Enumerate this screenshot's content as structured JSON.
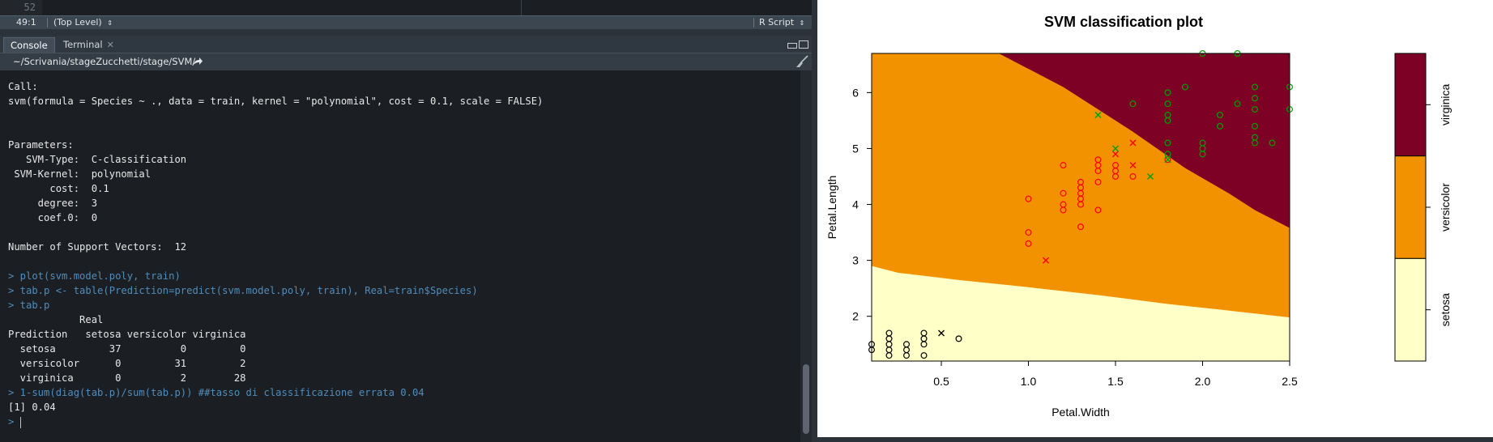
{
  "editor": {
    "line_number": "52"
  },
  "statusbar": {
    "position": "49:1",
    "scope": "(Top Level)",
    "filetype": "R Script"
  },
  "tabs": [
    {
      "label": "Console"
    },
    {
      "label": "Terminal"
    }
  ],
  "path": {
    "text": "~/Scrivania/stageZucchetti/stage/SVM/"
  },
  "console": {
    "lines": [
      "Call:",
      "svm(formula = Species ~ ., data = train, kernel = \"polynomial\", cost = 0.1, scale = FALSE)",
      "",
      "",
      "Parameters:",
      "   SVM-Type:  C-classification",
      " SVM-Kernel:  polynomial",
      "       cost:  0.1",
      "     degree:  3",
      "     coef.0:  0",
      "",
      "Number of Support Vectors:  12",
      "",
      "> plot(svm.model.poly, train)",
      "> tab.p <- table(Prediction=predict(svm.model.poly, train), Real=train$Species)",
      "> tab.p",
      "            Real",
      "Prediction   setosa versicolor virginica",
      "  setosa         37          0         0",
      "  versicolor      0         31         2",
      "  virginica       0          2        28",
      "> 1-sum(diag(tab.p)/sum(tab.p)) ##tasso di classificazione errata 0.04",
      "[1] 0.04",
      "> "
    ]
  },
  "chart_data": {
    "type": "scatter",
    "title": "SVM classification plot",
    "xlabel": "Petal.Width",
    "ylabel": "Petal.Length",
    "xlim": [
      0.1,
      2.5
    ],
    "ylim": [
      1.2,
      6.7
    ],
    "xticks": [
      "0.5",
      "1.0",
      "1.5",
      "2.0",
      "2.5"
    ],
    "xtick_values": [
      0.5,
      1.0,
      1.5,
      2.0,
      2.5
    ],
    "yticks": [
      "2",
      "3",
      "4",
      "5",
      "6"
    ],
    "ytick_values": [
      2,
      3,
      4,
      5,
      6
    ],
    "classes": [
      {
        "name": "setosa",
        "region_color": "#ffffc8",
        "point_color": "#000000"
      },
      {
        "name": "versicolor",
        "region_color": "#f39200",
        "point_color": "#ff0000"
      },
      {
        "name": "virginica",
        "region_color": "#7d0025",
        "point_color": "#00a000"
      }
    ],
    "legend": {
      "position": "right",
      "labels": [
        "setosa",
        "versicolor",
        "virginica"
      ]
    },
    "boundaries": {
      "setosa_versicolor": [
        [
          0.1,
          2.9
        ],
        [
          0.25,
          2.78
        ],
        [
          0.6,
          2.65
        ],
        [
          1.0,
          2.52
        ],
        [
          1.4,
          2.38
        ],
        [
          1.8,
          2.22
        ],
        [
          2.1,
          2.12
        ],
        [
          2.3,
          2.05
        ],
        [
          2.5,
          1.98
        ]
      ],
      "versicolor_virginica": [
        [
          0.83,
          6.7
        ],
        [
          1.2,
          6.1
        ],
        [
          1.6,
          5.3
        ],
        [
          1.9,
          4.65
        ],
        [
          2.15,
          4.2
        ],
        [
          2.3,
          3.9
        ],
        [
          2.5,
          3.58
        ]
      ]
    },
    "points": [
      {
        "x": 0.1,
        "y": 1.5,
        "class": "setosa",
        "marker": "o"
      },
      {
        "x": 0.1,
        "y": 1.4,
        "class": "setosa",
        "marker": "o"
      },
      {
        "x": 0.2,
        "y": 1.3,
        "class": "setosa",
        "marker": "o"
      },
      {
        "x": 0.2,
        "y": 1.4,
        "class": "setosa",
        "marker": "o"
      },
      {
        "x": 0.2,
        "y": 1.5,
        "class": "setosa",
        "marker": "o"
      },
      {
        "x": 0.2,
        "y": 1.6,
        "class": "setosa",
        "marker": "o"
      },
      {
        "x": 0.2,
        "y": 1.7,
        "class": "setosa",
        "marker": "o"
      },
      {
        "x": 0.3,
        "y": 1.3,
        "class": "setosa",
        "marker": "o"
      },
      {
        "x": 0.3,
        "y": 1.4,
        "class": "setosa",
        "marker": "o"
      },
      {
        "x": 0.3,
        "y": 1.5,
        "class": "setosa",
        "marker": "o"
      },
      {
        "x": 0.4,
        "y": 1.3,
        "class": "setosa",
        "marker": "o"
      },
      {
        "x": 0.4,
        "y": 1.5,
        "class": "setosa",
        "marker": "o"
      },
      {
        "x": 0.4,
        "y": 1.6,
        "class": "setosa",
        "marker": "o"
      },
      {
        "x": 0.4,
        "y": 1.7,
        "class": "setosa",
        "marker": "o"
      },
      {
        "x": 0.5,
        "y": 1.7,
        "class": "setosa",
        "marker": "x"
      },
      {
        "x": 0.6,
        "y": 1.6,
        "class": "setosa",
        "marker": "o"
      },
      {
        "x": 1.0,
        "y": 3.3,
        "class": "versicolor",
        "marker": "o"
      },
      {
        "x": 1.0,
        "y": 3.5,
        "class": "versicolor",
        "marker": "o"
      },
      {
        "x": 1.0,
        "y": 4.1,
        "class": "versicolor",
        "marker": "o"
      },
      {
        "x": 1.1,
        "y": 3.0,
        "class": "versicolor",
        "marker": "x"
      },
      {
        "x": 1.2,
        "y": 3.9,
        "class": "versicolor",
        "marker": "o"
      },
      {
        "x": 1.2,
        "y": 4.0,
        "class": "versicolor",
        "marker": "o"
      },
      {
        "x": 1.2,
        "y": 4.2,
        "class": "versicolor",
        "marker": "o"
      },
      {
        "x": 1.2,
        "y": 4.7,
        "class": "versicolor",
        "marker": "o"
      },
      {
        "x": 1.3,
        "y": 3.6,
        "class": "versicolor",
        "marker": "o"
      },
      {
        "x": 1.3,
        "y": 4.0,
        "class": "versicolor",
        "marker": "o"
      },
      {
        "x": 1.3,
        "y": 4.1,
        "class": "versicolor",
        "marker": "o"
      },
      {
        "x": 1.3,
        "y": 4.2,
        "class": "versicolor",
        "marker": "o"
      },
      {
        "x": 1.3,
        "y": 4.3,
        "class": "versicolor",
        "marker": "o"
      },
      {
        "x": 1.3,
        "y": 4.4,
        "class": "versicolor",
        "marker": "o"
      },
      {
        "x": 1.4,
        "y": 3.9,
        "class": "versicolor",
        "marker": "o"
      },
      {
        "x": 1.4,
        "y": 4.4,
        "class": "versicolor",
        "marker": "o"
      },
      {
        "x": 1.4,
        "y": 4.6,
        "class": "versicolor",
        "marker": "o"
      },
      {
        "x": 1.4,
        "y": 4.7,
        "class": "versicolor",
        "marker": "o"
      },
      {
        "x": 1.4,
        "y": 4.8,
        "class": "versicolor",
        "marker": "o"
      },
      {
        "x": 1.5,
        "y": 4.5,
        "class": "versicolor",
        "marker": "o"
      },
      {
        "x": 1.5,
        "y": 4.6,
        "class": "versicolor",
        "marker": "o"
      },
      {
        "x": 1.5,
        "y": 4.7,
        "class": "versicolor",
        "marker": "o"
      },
      {
        "x": 1.5,
        "y": 4.9,
        "class": "versicolor",
        "marker": "x"
      },
      {
        "x": 1.6,
        "y": 4.5,
        "class": "versicolor",
        "marker": "o"
      },
      {
        "x": 1.6,
        "y": 4.7,
        "class": "versicolor",
        "marker": "x"
      },
      {
        "x": 1.6,
        "y": 5.1,
        "class": "versicolor",
        "marker": "x"
      },
      {
        "x": 1.8,
        "y": 4.8,
        "class": "versicolor",
        "marker": "o"
      },
      {
        "x": 1.4,
        "y": 5.6,
        "class": "virginica",
        "marker": "x"
      },
      {
        "x": 1.5,
        "y": 5.0,
        "class": "virginica",
        "marker": "x"
      },
      {
        "x": 1.6,
        "y": 5.8,
        "class": "virginica",
        "marker": "o"
      },
      {
        "x": 1.7,
        "y": 4.5,
        "class": "virginica",
        "marker": "x"
      },
      {
        "x": 1.8,
        "y": 4.8,
        "class": "virginica",
        "marker": "x"
      },
      {
        "x": 1.8,
        "y": 4.9,
        "class": "virginica",
        "marker": "o"
      },
      {
        "x": 1.8,
        "y": 5.1,
        "class": "virginica",
        "marker": "o"
      },
      {
        "x": 1.8,
        "y": 5.5,
        "class": "virginica",
        "marker": "o"
      },
      {
        "x": 1.8,
        "y": 5.6,
        "class": "virginica",
        "marker": "o"
      },
      {
        "x": 1.8,
        "y": 5.8,
        "class": "virginica",
        "marker": "o"
      },
      {
        "x": 1.8,
        "y": 6.0,
        "class": "virginica",
        "marker": "o"
      },
      {
        "x": 1.9,
        "y": 6.1,
        "class": "virginica",
        "marker": "o"
      },
      {
        "x": 2.0,
        "y": 4.9,
        "class": "virginica",
        "marker": "o"
      },
      {
        "x": 2.0,
        "y": 5.0,
        "class": "virginica",
        "marker": "o"
      },
      {
        "x": 2.0,
        "y": 5.1,
        "class": "virginica",
        "marker": "o"
      },
      {
        "x": 2.0,
        "y": 6.7,
        "class": "virginica",
        "marker": "o"
      },
      {
        "x": 2.1,
        "y": 5.4,
        "class": "virginica",
        "marker": "o"
      },
      {
        "x": 2.1,
        "y": 5.6,
        "class": "virginica",
        "marker": "o"
      },
      {
        "x": 2.2,
        "y": 5.8,
        "class": "virginica",
        "marker": "o"
      },
      {
        "x": 2.2,
        "y": 6.7,
        "class": "virginica",
        "marker": "o"
      },
      {
        "x": 2.3,
        "y": 5.1,
        "class": "virginica",
        "marker": "o"
      },
      {
        "x": 2.3,
        "y": 5.2,
        "class": "virginica",
        "marker": "o"
      },
      {
        "x": 2.3,
        "y": 5.4,
        "class": "virginica",
        "marker": "o"
      },
      {
        "x": 2.3,
        "y": 5.7,
        "class": "virginica",
        "marker": "o"
      },
      {
        "x": 2.3,
        "y": 5.9,
        "class": "virginica",
        "marker": "o"
      },
      {
        "x": 2.3,
        "y": 6.1,
        "class": "virginica",
        "marker": "o"
      },
      {
        "x": 2.4,
        "y": 5.1,
        "class": "virginica",
        "marker": "o"
      },
      {
        "x": 2.5,
        "y": 5.7,
        "class": "virginica",
        "marker": "o"
      },
      {
        "x": 2.5,
        "y": 6.1,
        "class": "virginica",
        "marker": "o"
      }
    ]
  },
  "icons": {
    "tab_close": "close-icon",
    "path_arrow": "share-arrow-icon",
    "broom": "broom-icon",
    "minimize": "minimize-icon",
    "maximize": "maximize-icon"
  }
}
